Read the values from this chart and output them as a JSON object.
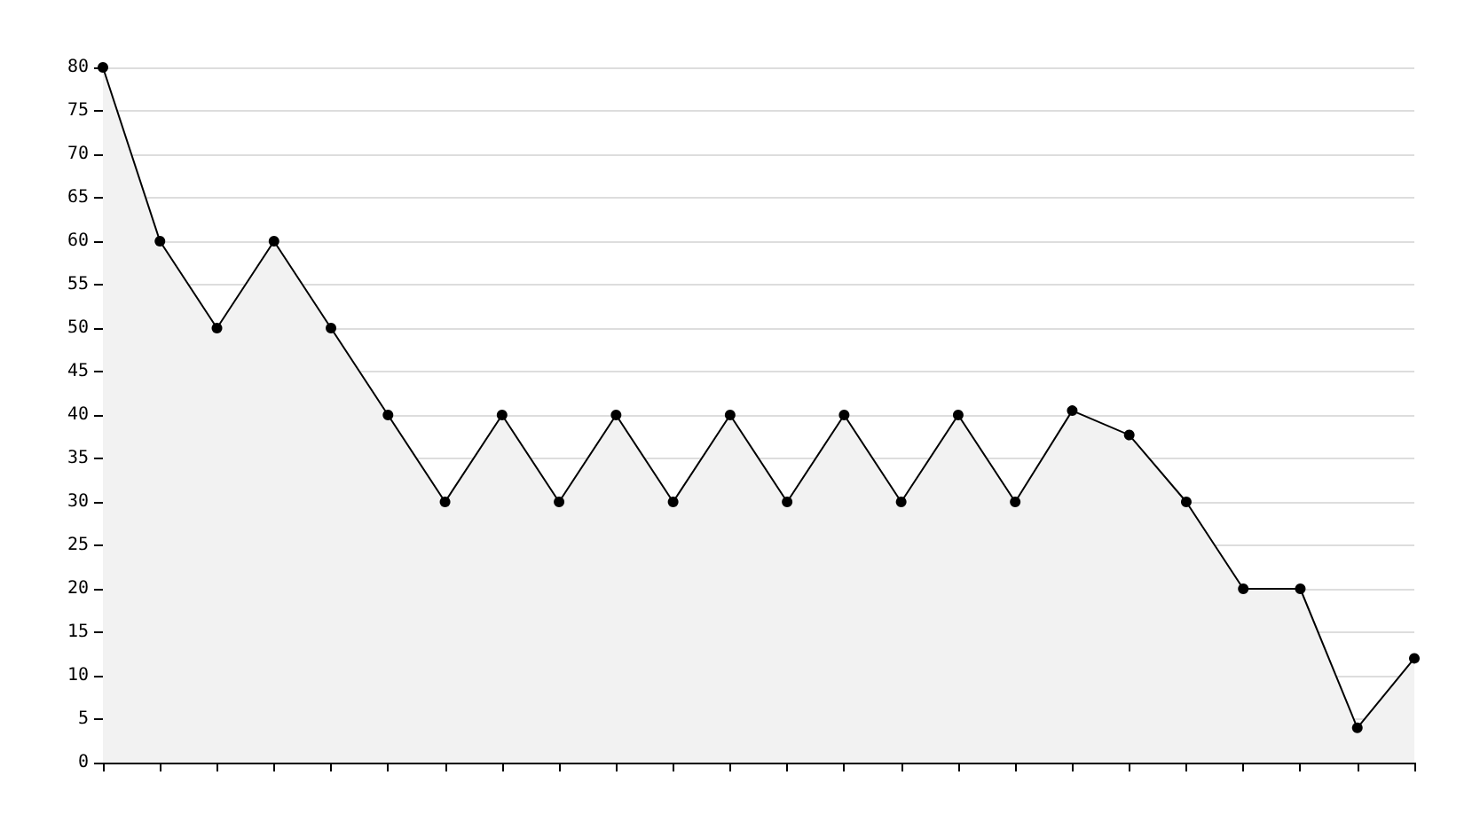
{
  "chart_data": {
    "type": "area",
    "categories": [
      null,
      null,
      null,
      null,
      null,
      null,
      null,
      null,
      null,
      null,
      null,
      null,
      null,
      null,
      null,
      null,
      null,
      null,
      null,
      null,
      null,
      null,
      null,
      null
    ],
    "series": [
      {
        "color": "#000000",
        "values": [
          80,
          60,
          50,
          60,
          50,
          40,
          30,
          40,
          30,
          40,
          30,
          40,
          30,
          40,
          30,
          40,
          30,
          40.5,
          37.7,
          30,
          20,
          20,
          4,
          12
        ]
      }
    ],
    "ylim": [
      0,
      80
    ],
    "yticks": [
      0,
      5,
      10,
      15,
      20,
      25,
      30,
      35,
      40,
      45,
      50,
      55,
      60,
      65,
      70,
      75,
      80
    ],
    "grid": "y",
    "marker": "circle"
  }
}
